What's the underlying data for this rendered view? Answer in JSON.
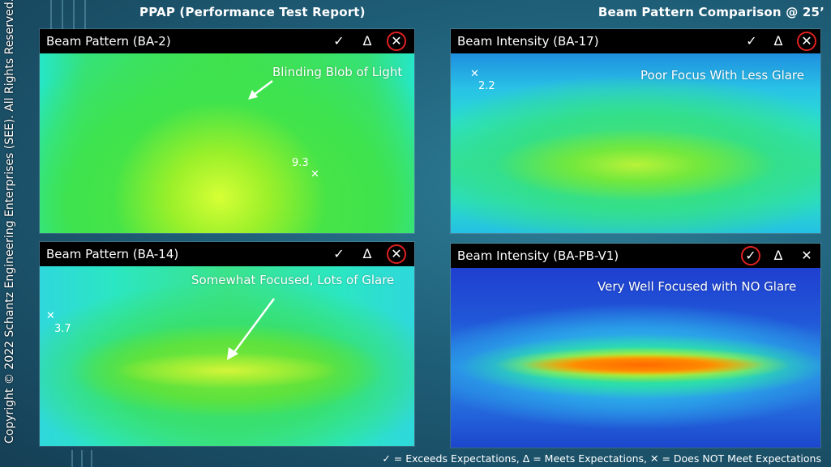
{
  "header": {
    "left_title": "PPAP (Performance Test Report)",
    "right_title": "Beam Pattern Comparison @ 25’"
  },
  "copyright": "Copyright © 2022 Schantz Engineering Enterprises (SEE).  All Rights Reserved.",
  "marks": {
    "check": "✓",
    "delta": "Δ",
    "cross": "✕"
  },
  "panels": [
    {
      "title": "Beam Pattern  (BA-2)",
      "annotation": "Blinding Blob of Light",
      "point_value": "9.3",
      "rating": "cross"
    },
    {
      "title": "Beam Intensity (BA-17)",
      "annotation": "Poor Focus With Less Glare",
      "point_value": "2.2",
      "rating": "cross"
    },
    {
      "title": "Beam Pattern  (BA-14)",
      "annotation": "Somewhat Focused, Lots of Glare",
      "point_value": "3.7",
      "rating": "cross"
    },
    {
      "title": "Beam Intensity (BA-PB-V1)",
      "annotation": "Very Well Focused with NO Glare",
      "point_value": "",
      "rating": "check"
    }
  ],
  "legend": "✓ = Exceeds Expectations, Δ = Meets Expectations, ✕ = Does NOT Meet Expectations",
  "colors": {
    "rating_circle": "#e02020",
    "heat_green": "#33dd33",
    "heat_cyan": "#22e6d6",
    "heat_blue": "#1a3ccc",
    "heat_orange": "#ff6a00"
  }
}
